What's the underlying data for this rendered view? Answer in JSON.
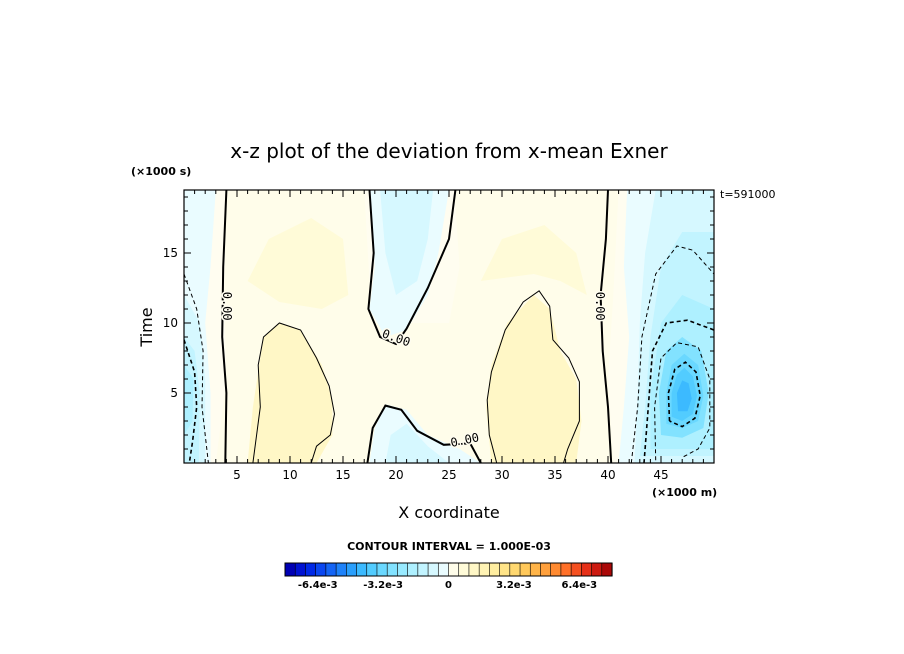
{
  "chart_data": {
    "type": "heatmap",
    "title": "x-z plot of the deviation from x-mean Exner",
    "xlabel": "X coordinate",
    "ylabel": "Time",
    "x_unit": "(×1000 m)",
    "y_unit": "(×1000 s)",
    "time_label": "t=591000",
    "xlim": [
      0,
      50
    ],
    "ylim": [
      0,
      19.5
    ],
    "x_ticks": [
      5,
      10,
      15,
      20,
      25,
      30,
      35,
      40,
      45
    ],
    "y_ticks": [
      5,
      10,
      15
    ],
    "contour_interval_text": "CONTOUR INTERVAL = 1.000E-03",
    "zero_contour_label": "0.00",
    "colorbar": {
      "min": -0.008,
      "max": 0.008,
      "n_levels": 32,
      "tick_labels": [
        "-6.4e-3",
        "-3.2e-3",
        "0",
        "3.2e-3",
        "6.4e-3"
      ],
      "tick_values": [
        -0.0064,
        -0.0032,
        0,
        0.0032,
        0.0064
      ]
    },
    "field_features": [
      {
        "kind": "negative_min",
        "x": 47,
        "y": 4.5,
        "value": -0.0045
      },
      {
        "kind": "negative_region",
        "x": 0.5,
        "y": 6,
        "value": -0.002
      },
      {
        "kind": "negative_region",
        "x": 22,
        "y": 17,
        "value": -0.0008
      },
      {
        "kind": "negative_region",
        "x": 22,
        "y": 1.5,
        "value": -0.0009
      },
      {
        "kind": "positive_max",
        "x": 10,
        "y": 5,
        "value": 0.0017
      },
      {
        "kind": "positive_max",
        "x": 33.5,
        "y": 5,
        "value": 0.0018
      }
    ]
  }
}
